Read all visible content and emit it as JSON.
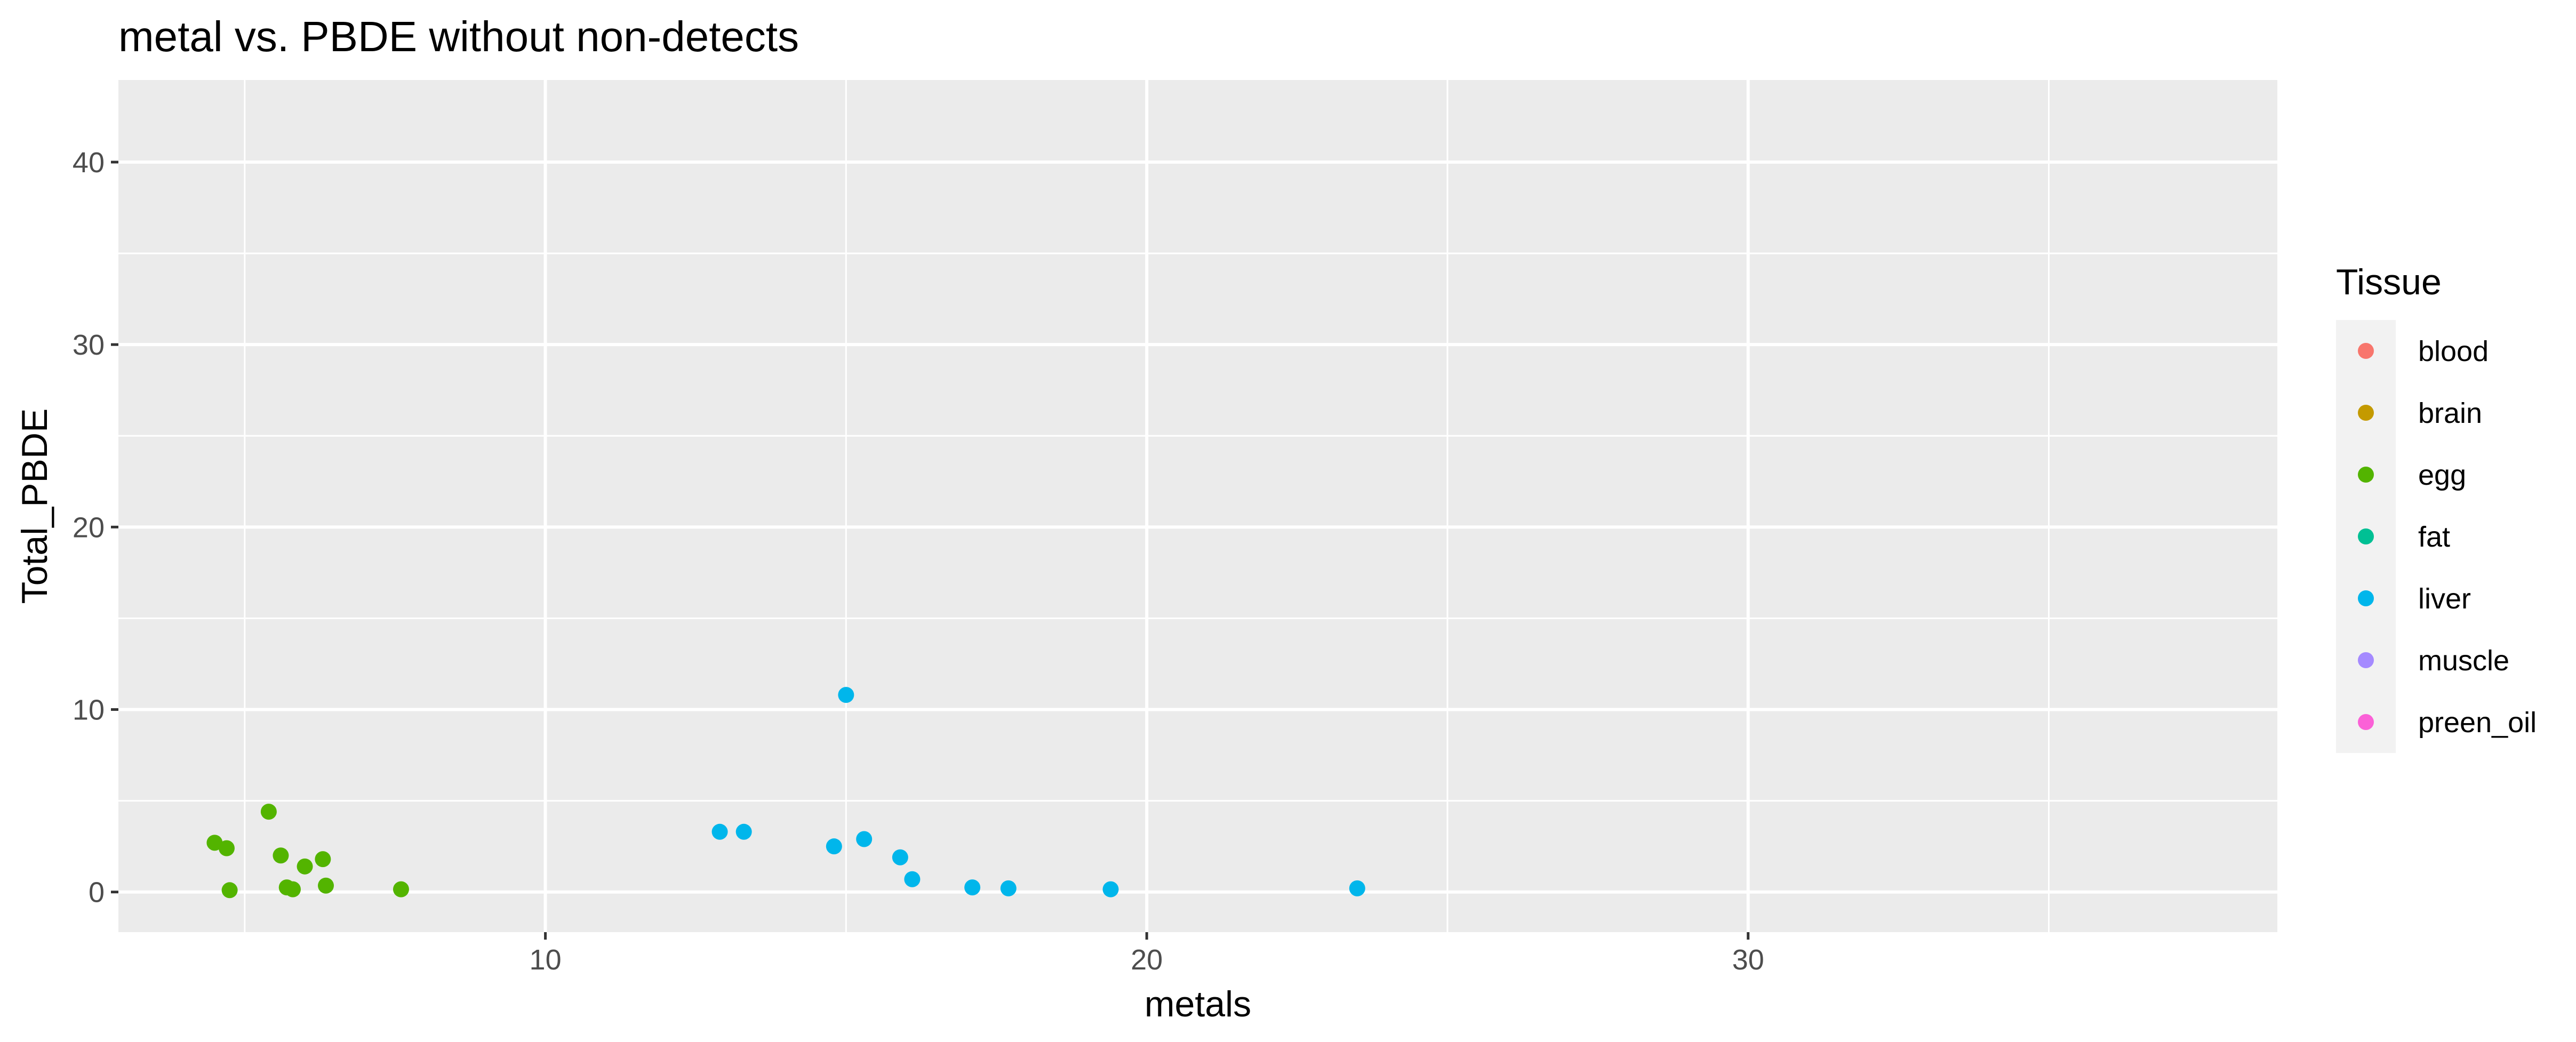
{
  "chart_data": {
    "type": "scatter",
    "title": "metal vs. PBDE without non-detects",
    "xlabel": "metals",
    "ylabel": "Total_PBDE",
    "xlim": [
      2.9,
      38.8
    ],
    "ylim": [
      -2.2,
      44.5
    ],
    "x_ticks": [
      10,
      20,
      30
    ],
    "y_ticks": [
      0,
      10,
      20,
      30,
      40
    ],
    "x_tick_labels": [
      "10",
      "20",
      "30"
    ],
    "y_tick_labels": [
      "0",
      "10",
      "20",
      "30",
      "40"
    ],
    "x_minor": [
      5,
      15,
      25,
      35
    ],
    "y_minor": [
      5,
      15,
      25,
      35
    ],
    "grid": true,
    "legend": {
      "title": "Tissue",
      "position": "right",
      "entries": [
        {
          "label": "blood",
          "color": "#F8766D"
        },
        {
          "label": "brain",
          "color": "#C49A00"
        },
        {
          "label": "egg",
          "color": "#53B400"
        },
        {
          "label": "fat",
          "color": "#00C094"
        },
        {
          "label": "liver",
          "color": "#00B6EB"
        },
        {
          "label": "muscle",
          "color": "#A58AFF"
        },
        {
          "label": "preen_oil",
          "color": "#FB61D7"
        }
      ]
    },
    "series": [
      {
        "name": "egg",
        "color": "#53B400",
        "points": [
          {
            "x": 4.5,
            "y": 2.7
          },
          {
            "x": 4.7,
            "y": 2.4
          },
          {
            "x": 5.4,
            "y": 4.4
          },
          {
            "x": 5.6,
            "y": 2.0
          },
          {
            "x": 6.0,
            "y": 1.4
          },
          {
            "x": 6.3,
            "y": 1.8
          },
          {
            "x": 4.75,
            "y": 0.1
          },
          {
            "x": 5.7,
            "y": 0.25
          },
          {
            "x": 5.8,
            "y": 0.15
          },
          {
            "x": 6.35,
            "y": 0.35
          },
          {
            "x": 7.6,
            "y": 0.15
          }
        ]
      },
      {
        "name": "liver",
        "color": "#00B6EB",
        "points": [
          {
            "x": 12.9,
            "y": 3.3
          },
          {
            "x": 13.3,
            "y": 3.3
          },
          {
            "x": 14.8,
            "y": 2.5
          },
          {
            "x": 15.0,
            "y": 10.8
          },
          {
            "x": 15.3,
            "y": 2.9
          },
          {
            "x": 15.9,
            "y": 1.9
          },
          {
            "x": 16.1,
            "y": 0.7
          },
          {
            "x": 17.1,
            "y": 0.25
          },
          {
            "x": 17.7,
            "y": 0.2
          },
          {
            "x": 19.4,
            "y": 0.15
          },
          {
            "x": 23.5,
            "y": 0.2
          }
        ]
      }
    ]
  }
}
